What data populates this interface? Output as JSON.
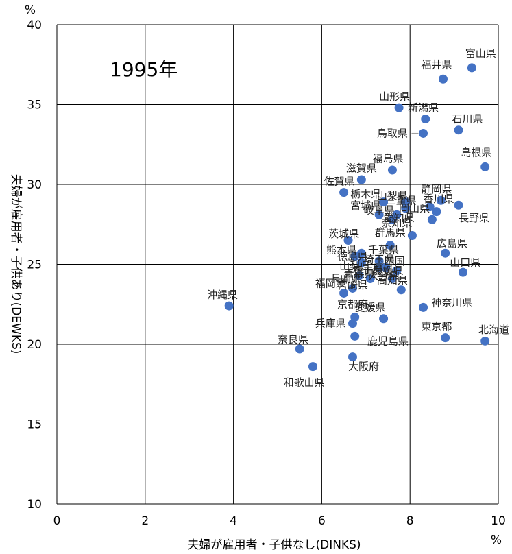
{
  "chart_data": {
    "type": "scatter",
    "title": "1995年",
    "xlabel": "夫婦が雇用者・子供なし(DINKS)",
    "ylabel": "夫婦が雇用者・子供あり(DEWKS)",
    "x_unit": "%",
    "y_unit": "%",
    "xlim": [
      0,
      10
    ],
    "ylim": [
      10,
      40
    ],
    "x_ticks": [
      "0",
      "2",
      "4",
      "6",
      "8",
      "10"
    ],
    "y_ticks": [
      "10",
      "15",
      "20",
      "25",
      "30",
      "35",
      "40"
    ],
    "grid": true,
    "marker_color": "#4472C4",
    "points": [
      {
        "name": "富山県",
        "x": 9.4,
        "y": 37.3,
        "lx": 9.6,
        "ly": 38.2
      },
      {
        "name": "福井県",
        "x": 8.75,
        "y": 36.6,
        "lx": 8.6,
        "ly": 37.5
      },
      {
        "name": "山形県",
        "x": 7.75,
        "y": 34.8,
        "lx": 7.65,
        "ly": 35.5
      },
      {
        "name": "新潟県",
        "x": 8.35,
        "y": 34.1,
        "lx": 8.3,
        "ly": 34.8
      },
      {
        "name": "石川県",
        "x": 9.1,
        "y": 33.4,
        "lx": 9.3,
        "ly": 34.1
      },
      {
        "name": "鳥取県",
        "x": 8.3,
        "y": 33.2,
        "lx": 7.6,
        "ly": 33.2
      },
      {
        "name": "島根県",
        "x": 9.7,
        "y": 31.1,
        "lx": 9.5,
        "ly": 32.0
      },
      {
        "name": "福島県",
        "x": 7.6,
        "y": 30.9,
        "lx": 7.5,
        "ly": 31.6
      },
      {
        "name": "滋賀県",
        "x": 6.9,
        "y": 30.3,
        "lx": 6.9,
        "ly": 31.0
      },
      {
        "name": "佐賀県",
        "x": 6.5,
        "y": 29.5,
        "lx": 6.4,
        "ly": 30.2
      },
      {
        "name": "栃木県",
        "x": 7.4,
        "y": 28.9,
        "lx": 7.0,
        "ly": 29.4
      },
      {
        "name": "山梨県",
        "x": 7.9,
        "y": 28.9,
        "lx": 7.6,
        "ly": 29.3
      },
      {
        "name": "静岡県",
        "x": 8.7,
        "y": 29.0,
        "lx": 8.6,
        "ly": 29.7
      },
      {
        "name": "長野県",
        "x": 9.1,
        "y": 28.7,
        "lx": 9.45,
        "ly": 27.9
      },
      {
        "name": "宮城県",
        "x": 7.3,
        "y": 28.1,
        "lx": 7.0,
        "ly": 28.7
      },
      {
        "name": "岐阜県",
        "x": 7.7,
        "y": 28.1,
        "lx": 7.3,
        "ly": 28.4
      },
      {
        "name": "岡山県",
        "x": 8.45,
        "y": 28.6,
        "lx": 8.1,
        "ly": 28.5
      },
      {
        "name": "香川県",
        "x": 8.6,
        "y": 28.3,
        "lx": 8.65,
        "ly": 29.1
      },
      {
        "name": "三重県",
        "x": 7.9,
        "y": 28.5,
        "lx": 7.8,
        "ly": 29.0
      },
      {
        "name": "愛知県",
        "x": 8.5,
        "y": 27.8,
        "lx": 7.75,
        "ly": 27.9
      },
      {
        "name": "奈知県",
        "x": 7.6,
        "y": 27.8,
        "lx": 7.7,
        "ly": 27.6
      },
      {
        "name": "群馬県",
        "x": 8.05,
        "y": 26.8,
        "lx": 7.55,
        "ly": 27.0
      },
      {
        "name": "広島県",
        "x": 8.8,
        "y": 25.7,
        "lx": 8.95,
        "ly": 26.3
      },
      {
        "name": "茨城県",
        "x": 6.6,
        "y": 26.5,
        "lx": 6.5,
        "ly": 26.9
      },
      {
        "name": "熊本県",
        "x": 6.75,
        "y": 25.5,
        "lx": 6.45,
        "ly": 25.9
      },
      {
        "name": "千葉県",
        "x": 7.55,
        "y": 26.2,
        "lx": 7.4,
        "ly": 25.9
      },
      {
        "name": "徳島県",
        "x": 6.9,
        "y": 25.7,
        "lx": 6.7,
        "ly": 25.5
      },
      {
        "name": "埼玉県",
        "x": 7.3,
        "y": 25.2,
        "lx": 7.3,
        "ly": 25.3
      },
      {
        "name": "山口県",
        "x": 9.2,
        "y": 24.5,
        "lx": 9.25,
        "ly": 25.1
      },
      {
        "name": "山梨県",
        "x": 6.9,
        "y": 25.1,
        "lx": 6.75,
        "ly": 24.9
      },
      {
        "name": "岩手県",
        "x": 7.3,
        "y": 24.8,
        "lx": 7.05,
        "ly": 24.7
      },
      {
        "name": "四国",
        "x": 7.45,
        "y": 24.8,
        "lx": 7.65,
        "ly": 25.2
      },
      {
        "name": "愛媛県",
        "x": 7.7,
        "y": 24.6,
        "lx": 7.5,
        "ly": 24.6
      },
      {
        "name": "長崎県",
        "x": 6.85,
        "y": 24.3,
        "lx": 6.55,
        "ly": 24.1
      },
      {
        "name": "青森県",
        "x": 7.1,
        "y": 24.1,
        "lx": 6.85,
        "ly": 24.4
      },
      {
        "name": "高知県",
        "x": 7.8,
        "y": 23.4,
        "lx": 7.6,
        "ly": 24.0
      },
      {
        "name": "大分県",
        "x": 7.6,
        "y": 24.1,
        "lx": 7.4,
        "ly": 24.3
      },
      {
        "name": "宮崎県",
        "x": 6.7,
        "y": 23.5,
        "lx": 6.7,
        "ly": 23.7
      },
      {
        "name": "福岡県",
        "x": 6.5,
        "y": 23.2,
        "lx": 6.2,
        "ly": 23.8
      },
      {
        "name": "沖縄県",
        "x": 3.9,
        "y": 22.4,
        "lx": 3.75,
        "ly": 23.1
      },
      {
        "name": "神奈川県",
        "x": 8.3,
        "y": 22.3,
        "lx": 8.95,
        "ly": 22.6
      },
      {
        "name": "京都府",
        "x": 6.75,
        "y": 21.7,
        "lx": 6.7,
        "ly": 22.5
      },
      {
        "name": "愛媛県",
        "x": 7.4,
        "y": 21.6,
        "lx": 7.1,
        "ly": 22.3
      },
      {
        "name": "兵庫県",
        "x": 6.7,
        "y": 21.3,
        "lx": 6.2,
        "ly": 21.3
      },
      {
        "name": "東京都",
        "x": 8.8,
        "y": 20.4,
        "lx": 8.6,
        "ly": 21.1
      },
      {
        "name": "北海道",
        "x": 9.7,
        "y": 20.2,
        "lx": 9.9,
        "ly": 20.9
      },
      {
        "name": "鹿児島県",
        "x": 6.75,
        "y": 20.5,
        "lx": 7.5,
        "ly": 20.2
      },
      {
        "name": "奈良県",
        "x": 5.5,
        "y": 19.7,
        "lx": 5.35,
        "ly": 20.3
      },
      {
        "name": "大阪府",
        "x": 6.7,
        "y": 19.2,
        "lx": 6.95,
        "ly": 18.6
      },
      {
        "name": "和歌山県",
        "x": 5.8,
        "y": 18.6,
        "lx": 5.6,
        "ly": 17.6
      }
    ]
  }
}
